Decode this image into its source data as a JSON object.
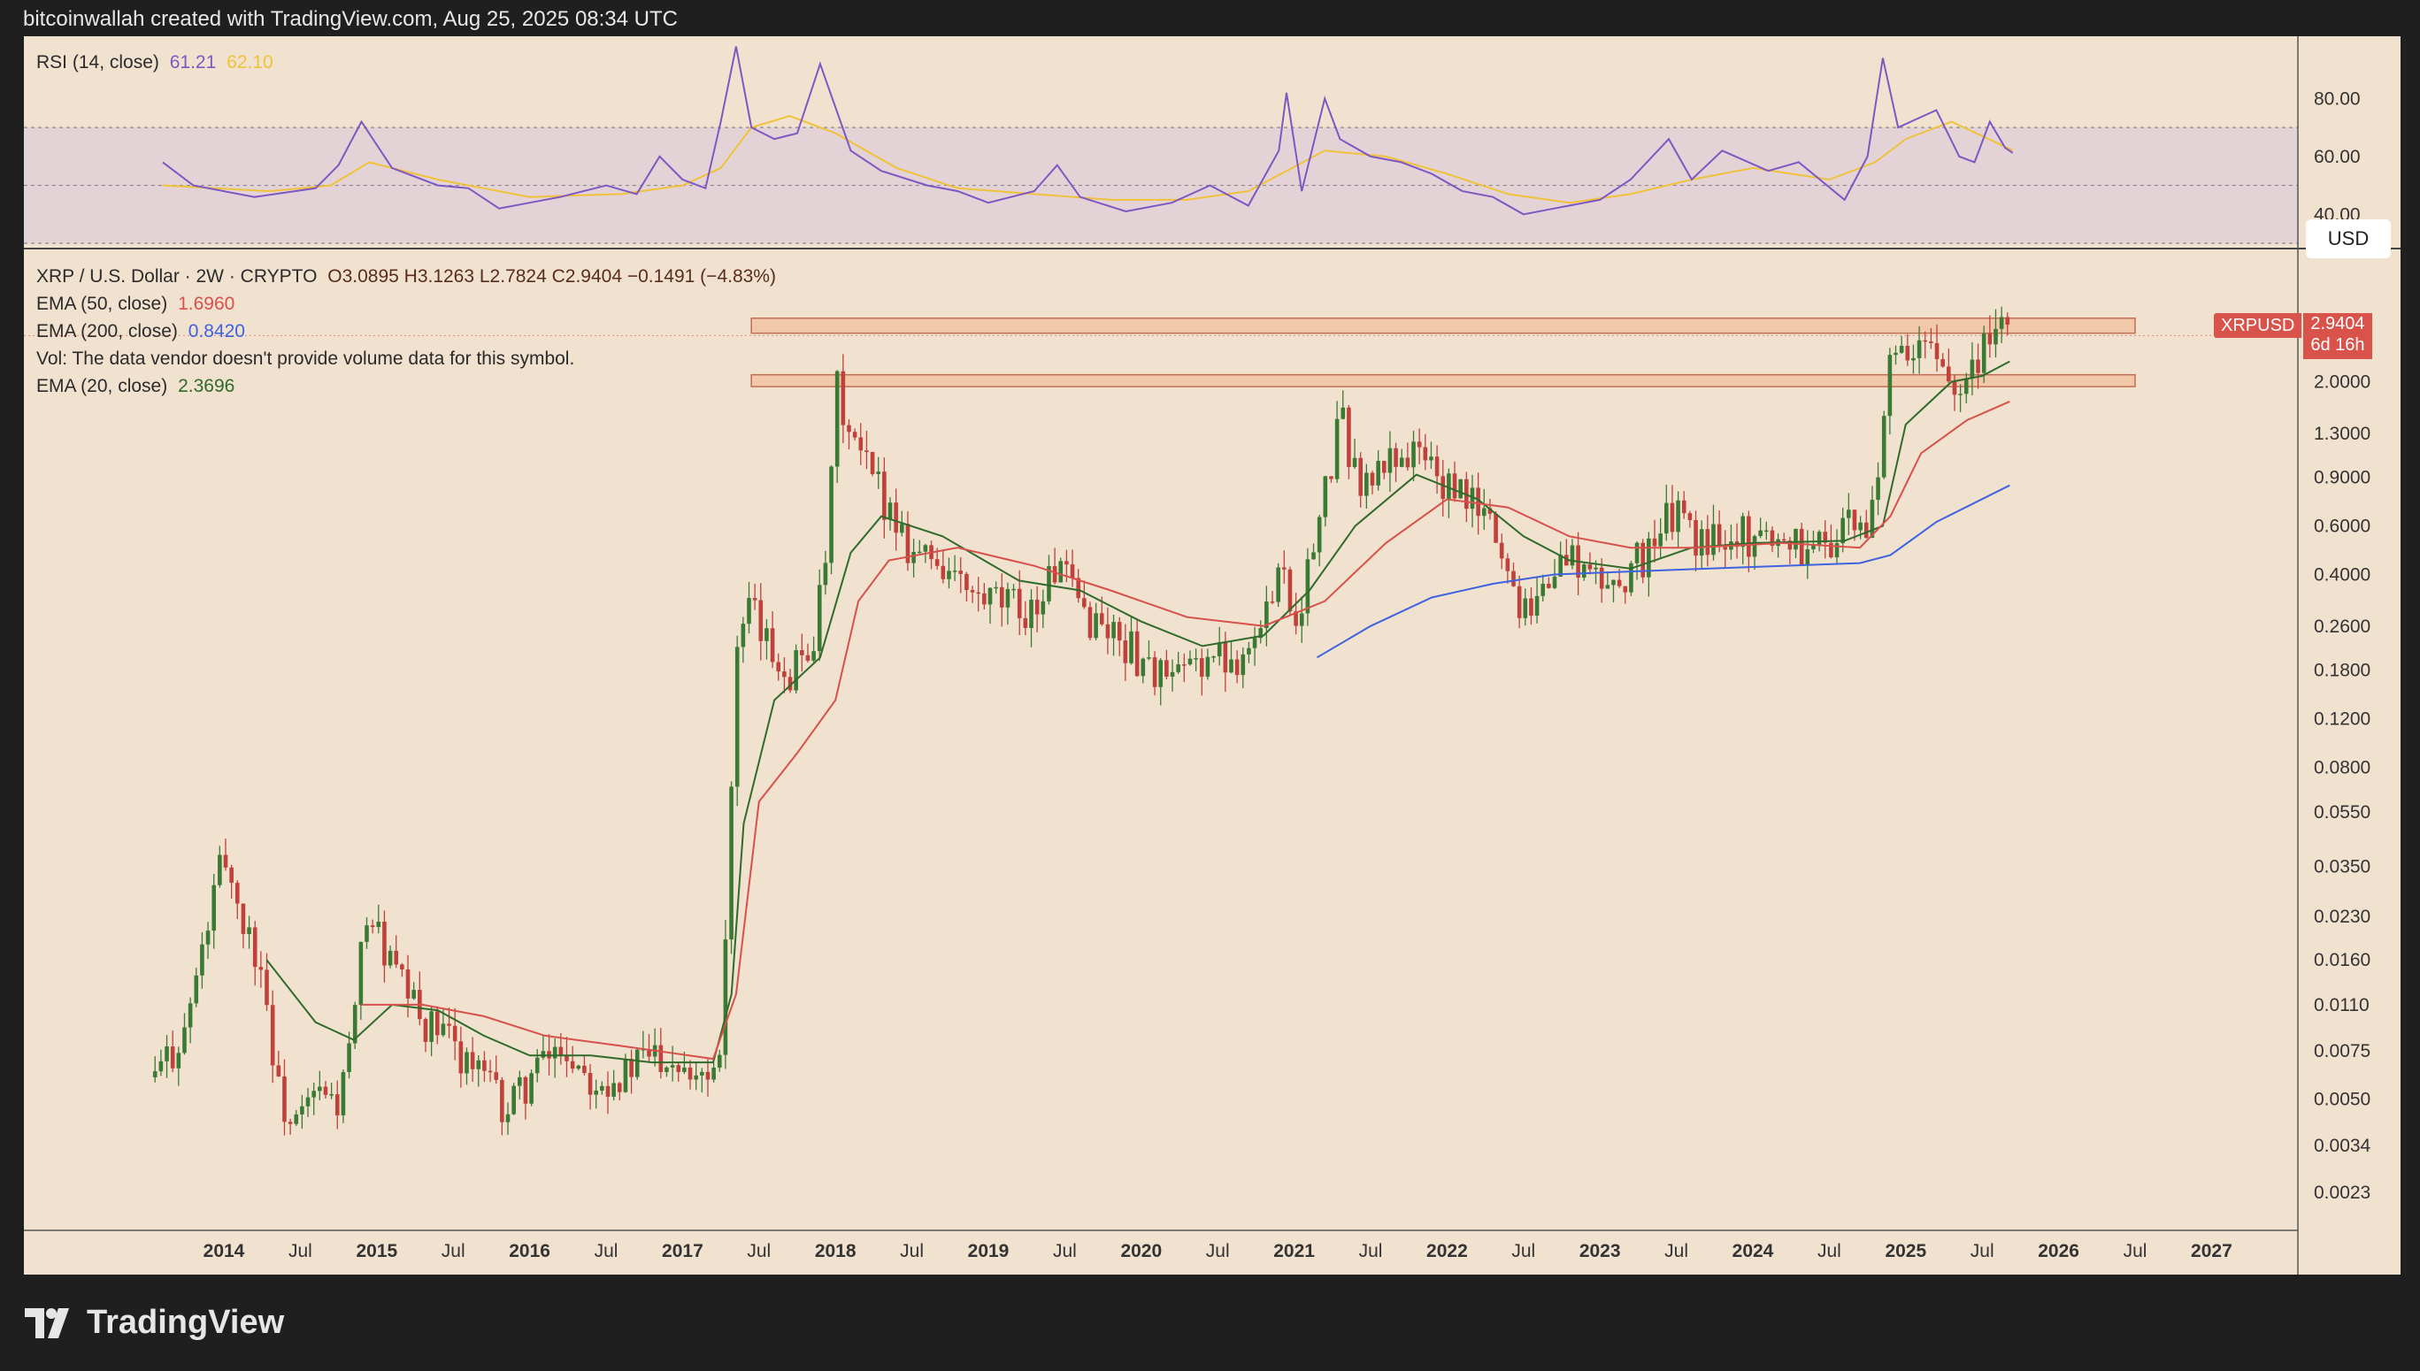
{
  "header": {
    "attribution": "bitcoinwallah created with TradingView.com, Aug 25, 2025 08:34 UTC"
  },
  "rsi_legend": {
    "label": "RSI (14, close)",
    "rsi": "61.21",
    "ma": "62.10"
  },
  "main_legend": {
    "symbol": "XRP / U.S. Dollar · 2W · CRYPTO",
    "ohlc": "O3.0895   H3.1263   L2.7824   C2.9404   −0.1491 (−4.83%)",
    "ema50_label": "EMA (50, close)",
    "ema50_value": "1.6960",
    "ema200_label": "EMA (200, close)",
    "ema200_value": "0.8420",
    "vol_note": "Vol: The data vendor doesn't provide volume data for this symbol.",
    "ema20_label": "EMA (20, close)",
    "ema20_value": "2.3696"
  },
  "currency_button": "USD",
  "price_tag": {
    "symbol": "XRPUSD",
    "price": "2.9404",
    "countdown": "6d 16h"
  },
  "brand": {
    "name": "TradingView"
  },
  "colors": {
    "ema20": "#2f6b2a",
    "ema50": "#d8504a",
    "ema200": "#3e63e0",
    "rsi": "#7e57c2",
    "rsi_ma": "#f0c23a",
    "up": "#3b7a33",
    "down": "#c0413a",
    "zone": "#f1b48a"
  },
  "chart_data": [
    {
      "type": "line",
      "panel": "RSI",
      "ylim": [
        30,
        100
      ],
      "y_ticks": [
        "80.00",
        "60.00",
        "40.00"
      ],
      "bands": {
        "upper": 70,
        "middle": 50,
        "lower": 30
      },
      "series": [
        {
          "name": "RSI (14, close)",
          "points": [
            [
              2013.6,
              58
            ],
            [
              2013.8,
              50
            ],
            [
              2014.2,
              46
            ],
            [
              2014.6,
              49
            ],
            [
              2014.75,
              57
            ],
            [
              2014.9,
              72
            ],
            [
              2015.1,
              56
            ],
            [
              2015.4,
              50
            ],
            [
              2015.6,
              49
            ],
            [
              2015.8,
              42
            ],
            [
              2016.2,
              46
            ],
            [
              2016.5,
              50
            ],
            [
              2016.7,
              47
            ],
            [
              2016.85,
              60
            ],
            [
              2017.0,
              52
            ],
            [
              2017.15,
              49
            ],
            [
              2017.25,
              72
            ],
            [
              2017.35,
              98
            ],
            [
              2017.45,
              70
            ],
            [
              2017.6,
              66
            ],
            [
              2017.75,
              68
            ],
            [
              2017.9,
              92
            ],
            [
              2018.1,
              62
            ],
            [
              2018.3,
              55
            ],
            [
              2018.6,
              50
            ],
            [
              2018.8,
              48
            ],
            [
              2019.0,
              44
            ],
            [
              2019.3,
              48
            ],
            [
              2019.45,
              57
            ],
            [
              2019.6,
              46
            ],
            [
              2019.9,
              41
            ],
            [
              2020.2,
              44
            ],
            [
              2020.45,
              50
            ],
            [
              2020.7,
              43
            ],
            [
              2020.9,
              62
            ],
            [
              2020.95,
              82
            ],
            [
              2021.05,
              48
            ],
            [
              2021.2,
              80
            ],
            [
              2021.3,
              66
            ],
            [
              2021.5,
              60
            ],
            [
              2021.7,
              58
            ],
            [
              2021.9,
              54
            ],
            [
              2022.1,
              48
            ],
            [
              2022.3,
              46
            ],
            [
              2022.5,
              40
            ],
            [
              2022.7,
              42
            ],
            [
              2023.0,
              45
            ],
            [
              2023.2,
              52
            ],
            [
              2023.45,
              66
            ],
            [
              2023.6,
              52
            ],
            [
              2023.8,
              62
            ],
            [
              2024.1,
              55
            ],
            [
              2024.3,
              58
            ],
            [
              2024.6,
              45
            ],
            [
              2024.75,
              60
            ],
            [
              2024.85,
              94
            ],
            [
              2024.95,
              70
            ],
            [
              2025.2,
              76
            ],
            [
              2025.35,
              60
            ],
            [
              2025.45,
              58
            ],
            [
              2025.55,
              72
            ],
            [
              2025.65,
              63
            ],
            [
              2025.7,
              61.21
            ]
          ]
        },
        {
          "name": "RSI MA",
          "points": [
            [
              2013.6,
              50
            ],
            [
              2014.3,
              48
            ],
            [
              2014.7,
              50
            ],
            [
              2014.95,
              58
            ],
            [
              2015.4,
              52
            ],
            [
              2016.0,
              46
            ],
            [
              2016.6,
              47
            ],
            [
              2017.0,
              50
            ],
            [
              2017.25,
              56
            ],
            [
              2017.45,
              70
            ],
            [
              2017.7,
              74
            ],
            [
              2018.0,
              68
            ],
            [
              2018.4,
              56
            ],
            [
              2018.8,
              49
            ],
            [
              2019.3,
              47
            ],
            [
              2019.8,
              45
            ],
            [
              2020.3,
              45
            ],
            [
              2020.7,
              48
            ],
            [
              2020.95,
              55
            ],
            [
              2021.2,
              62
            ],
            [
              2021.6,
              60
            ],
            [
              2022.0,
              54
            ],
            [
              2022.4,
              47
            ],
            [
              2022.8,
              44
            ],
            [
              2023.2,
              47
            ],
            [
              2023.6,
              52
            ],
            [
              2024.0,
              56
            ],
            [
              2024.5,
              52
            ],
            [
              2024.8,
              58
            ],
            [
              2025.0,
              66
            ],
            [
              2025.3,
              72
            ],
            [
              2025.7,
              62.1
            ]
          ]
        }
      ]
    },
    {
      "type": "candlestick",
      "panel": "price",
      "scale": "log",
      "ylim": [
        0.0018,
        3.6
      ],
      "x_ticks": [
        "2014",
        "Jul",
        "2015",
        "Jul",
        "2016",
        "Jul",
        "2017",
        "Jul",
        "2018",
        "Jul",
        "2019",
        "Jul",
        "2020",
        "Jul",
        "2021",
        "Jul",
        "2022",
        "Jul",
        "2023",
        "Jul",
        "2024",
        "Jul",
        "2025",
        "Jul",
        "2026",
        "Jul",
        "2027"
      ],
      "y_ticks": [
        "2.0000",
        "1.3000",
        "0.9000",
        "0.6000",
        "0.4000",
        "0.2600",
        "0.1800",
        "0.1200",
        "0.0800",
        "0.0550",
        "0.0350",
        "0.0230",
        "0.0160",
        "0.0110",
        "0.0075",
        "0.0050",
        "0.0034",
        "0.0023"
      ],
      "zones": [
        {
          "low": 3.0,
          "high": 3.4,
          "from": 2017.45,
          "to": 2026.5
        },
        {
          "low": 1.92,
          "high": 2.12,
          "from": 2017.45,
          "to": 2026.5
        }
      ],
      "price_path": [
        [
          2013.55,
          0.006
        ],
        [
          2013.75,
          0.009
        ],
        [
          2013.9,
          0.022
        ],
        [
          2014.0,
          0.04
        ],
        [
          2014.1,
          0.024
        ],
        [
          2014.25,
          0.015
        ],
        [
          2014.35,
          0.0055
        ],
        [
          2014.45,
          0.0038
        ],
        [
          2014.6,
          0.0052
        ],
        [
          2014.75,
          0.0048
        ],
        [
          2014.85,
          0.009
        ],
        [
          2014.93,
          0.025
        ],
        [
          2015.1,
          0.015
        ],
        [
          2015.3,
          0.0095
        ],
        [
          2015.5,
          0.008
        ],
        [
          2015.7,
          0.006
        ],
        [
          2015.85,
          0.0045
        ],
        [
          2016.0,
          0.006
        ],
        [
          2016.2,
          0.0078
        ],
        [
          2016.4,
          0.0062
        ],
        [
          2016.6,
          0.006
        ],
        [
          2016.8,
          0.0075
        ],
        [
          2016.95,
          0.0072
        ],
        [
          2017.1,
          0.0065
        ],
        [
          2017.2,
          0.0065
        ],
        [
          2017.25,
          0.009
        ],
        [
          2017.3,
          0.035
        ],
        [
          2017.35,
          0.2
        ],
        [
          2017.45,
          0.3
        ],
        [
          2017.55,
          0.22
        ],
        [
          2017.7,
          0.18
        ],
        [
          2017.85,
          0.23
        ],
        [
          2017.95,
          0.45
        ],
        [
          2018.0,
          2.0
        ],
        [
          2018.1,
          1.2
        ],
        [
          2018.3,
          0.8
        ],
        [
          2018.5,
          0.5
        ],
        [
          2018.7,
          0.44
        ],
        [
          2018.9,
          0.32
        ],
        [
          2019.1,
          0.31
        ],
        [
          2019.3,
          0.3
        ],
        [
          2019.45,
          0.44
        ],
        [
          2019.6,
          0.3
        ],
        [
          2019.8,
          0.25
        ],
        [
          2020.0,
          0.2
        ],
        [
          2020.2,
          0.16
        ],
        [
          2020.4,
          0.2
        ],
        [
          2020.6,
          0.2
        ],
        [
          2020.8,
          0.25
        ],
        [
          2020.9,
          0.5
        ],
        [
          2021.0,
          0.27
        ],
        [
          2021.15,
          0.55
        ],
        [
          2021.3,
          1.5
        ],
        [
          2021.45,
          0.8
        ],
        [
          2021.65,
          1.1
        ],
        [
          2021.85,
          1.1
        ],
        [
          2022.0,
          0.8
        ],
        [
          2022.15,
          0.75
        ],
        [
          2022.3,
          0.6
        ],
        [
          2022.45,
          0.33
        ],
        [
          2022.6,
          0.34
        ],
        [
          2022.8,
          0.48
        ],
        [
          2022.95,
          0.38
        ],
        [
          2023.1,
          0.37
        ],
        [
          2023.3,
          0.48
        ],
        [
          2023.5,
          0.7
        ],
        [
          2023.65,
          0.5
        ],
        [
          2023.8,
          0.6
        ],
        [
          2024.0,
          0.55
        ],
        [
          2024.2,
          0.55
        ],
        [
          2024.4,
          0.5
        ],
        [
          2024.6,
          0.6
        ],
        [
          2024.75,
          0.55
        ],
        [
          2024.82,
          1.0
        ],
        [
          2024.88,
          2.2
        ],
        [
          2025.0,
          2.4
        ],
        [
          2025.15,
          2.6
        ],
        [
          2025.3,
          2.1
        ],
        [
          2025.45,
          2.2
        ],
        [
          2025.52,
          3.1
        ],
        [
          2025.6,
          3.0
        ],
        [
          2025.68,
          2.9404
        ]
      ],
      "series": [
        {
          "name": "EMA (20, close)",
          "points": [
            [
              2014.28,
              0.016
            ],
            [
              2014.6,
              0.0095
            ],
            [
              2014.85,
              0.0082
            ],
            [
              2015.1,
              0.011
            ],
            [
              2015.4,
              0.0105
            ],
            [
              2015.7,
              0.0085
            ],
            [
              2016.0,
              0.0072
            ],
            [
              2016.4,
              0.0072
            ],
            [
              2016.8,
              0.0068
            ],
            [
              2017.2,
              0.0068
            ],
            [
              2017.32,
              0.012
            ],
            [
              2017.4,
              0.05
            ],
            [
              2017.6,
              0.14
            ],
            [
              2017.9,
              0.2
            ],
            [
              2018.1,
              0.48
            ],
            [
              2018.3,
              0.65
            ],
            [
              2018.7,
              0.55
            ],
            [
              2019.2,
              0.38
            ],
            [
              2019.6,
              0.35
            ],
            [
              2020.0,
              0.27
            ],
            [
              2020.4,
              0.22
            ],
            [
              2020.8,
              0.24
            ],
            [
              2021.1,
              0.35
            ],
            [
              2021.4,
              0.6
            ],
            [
              2021.8,
              0.92
            ],
            [
              2022.2,
              0.75
            ],
            [
              2022.5,
              0.55
            ],
            [
              2022.8,
              0.45
            ],
            [
              2023.2,
              0.42
            ],
            [
              2023.6,
              0.5
            ],
            [
              2024.0,
              0.52
            ],
            [
              2024.6,
              0.53
            ],
            [
              2024.85,
              0.6
            ],
            [
              2025.0,
              1.4
            ],
            [
              2025.3,
              2.0
            ],
            [
              2025.5,
              2.1
            ],
            [
              2025.68,
              2.3696
            ]
          ]
        },
        {
          "name": "EMA (50, close)",
          "points": [
            [
              2014.9,
              0.011
            ],
            [
              2015.3,
              0.011
            ],
            [
              2015.7,
              0.01
            ],
            [
              2016.1,
              0.0085
            ],
            [
              2016.6,
              0.0078
            ],
            [
              2017.2,
              0.007
            ],
            [
              2017.35,
              0.012
            ],
            [
              2017.5,
              0.06
            ],
            [
              2017.75,
              0.09
            ],
            [
              2018.0,
              0.14
            ],
            [
              2018.15,
              0.32
            ],
            [
              2018.35,
              0.45
            ],
            [
              2018.8,
              0.5
            ],
            [
              2019.3,
              0.43
            ],
            [
              2019.8,
              0.35
            ],
            [
              2020.3,
              0.28
            ],
            [
              2020.8,
              0.26
            ],
            [
              2021.2,
              0.32
            ],
            [
              2021.6,
              0.52
            ],
            [
              2022.0,
              0.75
            ],
            [
              2022.4,
              0.7
            ],
            [
              2022.8,
              0.55
            ],
            [
              2023.2,
              0.5
            ],
            [
              2023.6,
              0.5
            ],
            [
              2024.2,
              0.52
            ],
            [
              2024.7,
              0.5
            ],
            [
              2024.9,
              0.65
            ],
            [
              2025.1,
              1.1
            ],
            [
              2025.4,
              1.45
            ],
            [
              2025.68,
              1.696
            ]
          ]
        },
        {
          "name": "EMA (200, close)",
          "points": [
            [
              2021.15,
              0.2
            ],
            [
              2021.5,
              0.26
            ],
            [
              2021.9,
              0.33
            ],
            [
              2022.3,
              0.37
            ],
            [
              2022.7,
              0.4
            ],
            [
              2023.2,
              0.41
            ],
            [
              2023.7,
              0.42
            ],
            [
              2024.2,
              0.43
            ],
            [
              2024.7,
              0.44
            ],
            [
              2024.9,
              0.47
            ],
            [
              2025.2,
              0.62
            ],
            [
              2025.68,
              0.842
            ]
          ]
        }
      ]
    }
  ]
}
